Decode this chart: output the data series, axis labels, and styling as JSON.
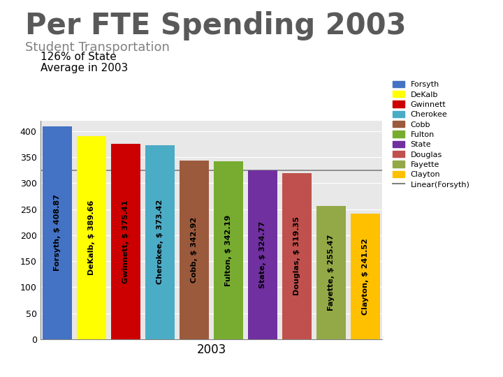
{
  "title": "Per FTE Spending 2003",
  "subtitle": "Student Transportation",
  "annotation_line1": "126% of State",
  "annotation_line2": "Average in 2003",
  "xlabel": "2003",
  "ylim": [
    0,
    420
  ],
  "yticks": [
    0,
    50,
    100,
    150,
    200,
    250,
    300,
    350,
    400
  ],
  "categories": [
    "Forsyth",
    "DeKalb",
    "Gwinnett",
    "Cherokee",
    "Cobb",
    "Fulton",
    "State",
    "Douglas",
    "Fayette",
    "Clayton"
  ],
  "values": [
    408.87,
    389.66,
    375.41,
    373.42,
    342.92,
    342.19,
    324.77,
    319.35,
    255.47,
    241.52
  ],
  "bar_labels": [
    "Forsyth, $ 408.87",
    "DeKalb, $ 389.66",
    "Gwinnett, $ 375.41",
    "Cherokee, $ 373.42",
    "Cobb, $ 342.92",
    "Fulton, $ 342.19",
    "State, $ 324.77",
    "Douglas, $ 319.35",
    "Fayette, $ 255.47",
    "Clayton, $ 241.52"
  ],
  "bar_colors": [
    "#4472C4",
    "#FFFF00",
    "#CC0000",
    "#4BACC6",
    "#9B5A3C",
    "#77AC30",
    "#7030A0",
    "#C0504D",
    "#93A847",
    "#FFC000"
  ],
  "legend_labels": [
    "Forsyth",
    "DeKalb",
    "Gwinnett",
    "Cherokee",
    "Cobb",
    "Fulton",
    "State",
    "Douglas",
    "Fayette",
    "Clayton",
    "Linear(Forsyth)"
  ],
  "reference_line_value": 324.77,
  "fig_bg": "#FFFFFF",
  "ax_bg": "#E8E8E8",
  "title_color": "#595959",
  "subtitle_color": "#808080",
  "title_fontsize": 30,
  "subtitle_fontsize": 13,
  "annotation_fontsize": 11,
  "bar_label_fontsize": 8,
  "xlabel_fontsize": 12,
  "ytick_fontsize": 9,
  "legend_fontsize": 8
}
